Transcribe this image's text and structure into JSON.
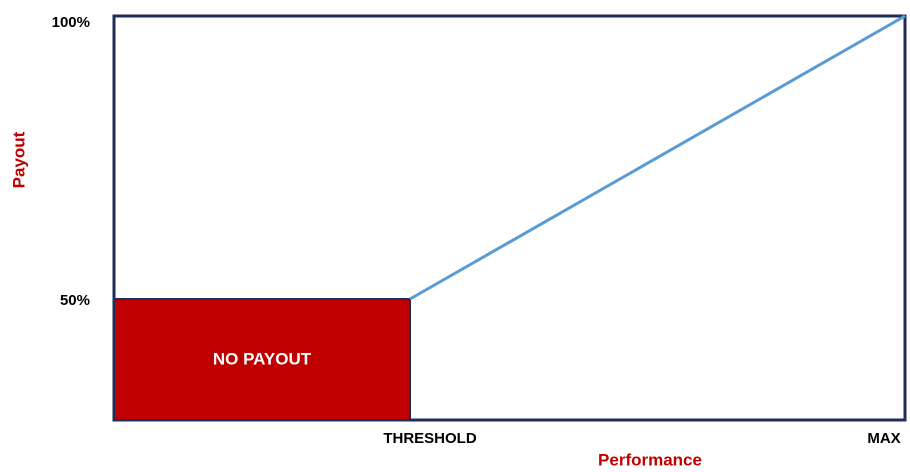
{
  "y_axis": {
    "label": "Payout",
    "ticks": [
      "100%",
      "50%"
    ]
  },
  "x_axis": {
    "label": "Performance",
    "ticks": [
      "THRESHOLD",
      "MAX"
    ]
  },
  "region_label": "NO PAYOUT"
}
